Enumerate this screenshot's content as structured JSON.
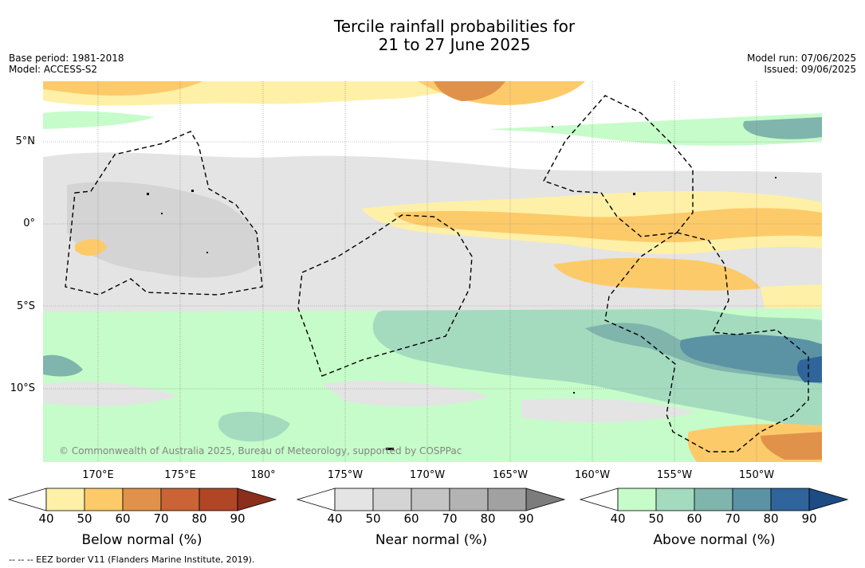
{
  "title": {
    "line1": "Tercile rainfall probabilities for",
    "line2": "21 to 27 June 2025"
  },
  "meta_left": {
    "base_period": "Base period: 1981-2018",
    "model": "Model: ACCESS-S2"
  },
  "meta_right": {
    "model_run": "Model run: 07/06/2025",
    "issued": "Issued: 09/06/2025"
  },
  "map": {
    "lat_labels": [
      "5°N",
      "0°",
      "5°S",
      "10°S"
    ],
    "lon_labels": [
      "170°E",
      "175°E",
      "180°",
      "175°W",
      "170°W",
      "165°W",
      "160°W",
      "155°W",
      "150°W"
    ],
    "copyright": "© Commonwealth of Australia 2025, Bureau of Meteorology, supported by COSPPac",
    "colors": {
      "ocean": "#ffffff",
      "eez_line": "#000000",
      "grid": "#808080"
    }
  },
  "colorbars": [
    {
      "name": "below",
      "title": "Below normal (%)",
      "ticks": [
        "40",
        "50",
        "60",
        "70",
        "80",
        "90"
      ],
      "colors": [
        "#fef0a7",
        "#fdca6a",
        "#e1924a",
        "#ca6436",
        "#b04626",
        "#8b2e1c"
      ]
    },
    {
      "name": "near",
      "title": "Near normal (%)",
      "ticks": [
        "40",
        "50",
        "60",
        "70",
        "80",
        "90"
      ],
      "colors": [
        "#e4e4e4",
        "#d4d4d4",
        "#c4c4c4",
        "#b3b3b3",
        "#a1a1a1",
        "#7c7c7c"
      ]
    },
    {
      "name": "above",
      "title": "Above normal (%)",
      "ticks": [
        "40",
        "50",
        "60",
        "70",
        "80",
        "90"
      ],
      "colors": [
        "#c6fcc9",
        "#a4dbbf",
        "#7fb5ac",
        "#5b93a5",
        "#30659b",
        "#1d4b84"
      ]
    }
  ],
  "footnote": "-- -- -- EEZ border V11 (Flanders Marine Institute, 2019)."
}
